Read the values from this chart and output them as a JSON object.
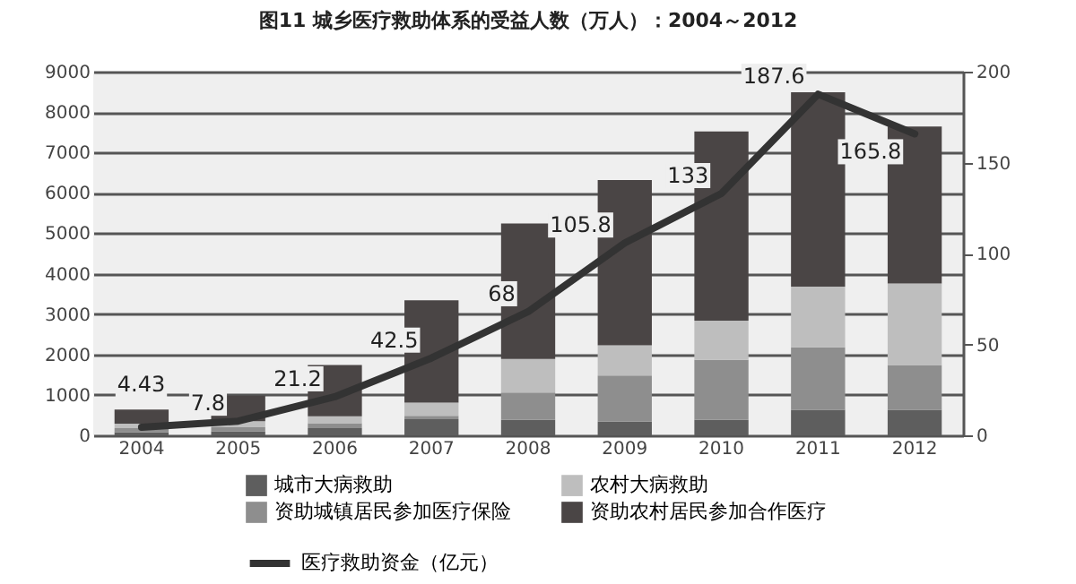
{
  "chart_data": {
    "type": "bar",
    "title": "图11  城乡医疗救助体系的受益人数（万人）：2004～2012",
    "categories": [
      "2004",
      "2005",
      "2006",
      "2007",
      "2008",
      "2009",
      "2010",
      "2011",
      "2012"
    ],
    "stacked": true,
    "ylim": [
      0,
      9000
    ],
    "yticks": [
      0,
      1000,
      2000,
      3000,
      4000,
      5000,
      6000,
      7000,
      8000,
      9000
    ],
    "y2lim": [
      0,
      200
    ],
    "y2ticks": [
      0,
      50,
      100,
      150,
      200
    ],
    "grid": "y",
    "legend": "bottom",
    "series": [
      {
        "name": "城市大病救助",
        "color": "#5e5e5e",
        "values": [
          80,
          100,
          180,
          400,
          380,
          340,
          380,
          630,
          630
        ]
      },
      {
        "name": "资助城镇居民参加医疗保险",
        "color": "#8e8e8e",
        "values": [
          100,
          100,
          120,
          80,
          680,
          1140,
          1490,
          1550,
          1110
        ]
      },
      {
        "name": "农村大病救助",
        "color": "#bebebe",
        "values": [
          110,
          150,
          170,
          330,
          830,
          750,
          970,
          1500,
          2020
        ]
      },
      {
        "name": "资助农村居民参加合作医疗",
        "color": "#4a4545",
        "values": [
          350,
          630,
          1270,
          2530,
          3350,
          4090,
          4680,
          4810,
          3880
        ]
      },
      {
        "name": "医疗救助资金（亿元）",
        "type": "line",
        "axis": "y2",
        "color": "#333333",
        "values": [
          4.43,
          7.8,
          21.2,
          42.5,
          68,
          105.8,
          133,
          187.6,
          165.8
        ],
        "value_labels": [
          "4.43",
          "7.8",
          "21.2",
          "42.5",
          "68",
          "105.8",
          "133",
          "187.6",
          "165.8"
        ]
      }
    ]
  }
}
